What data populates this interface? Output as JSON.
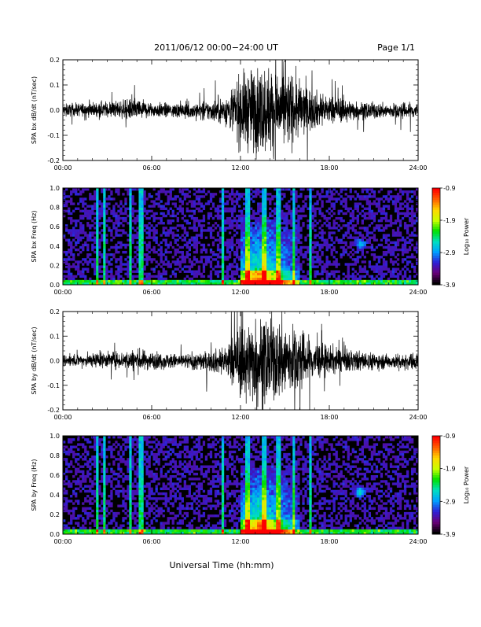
{
  "header": {
    "date_range": "2011/06/12  00:00−24:00 UT",
    "page": "Page 1/1"
  },
  "footer": {
    "xlabel": "Universal Time (hh:mm)"
  },
  "colorbar": {
    "label": "Log₁₀ Power",
    "ticks": [
      "-0.9",
      "-1.9",
      "-2.9",
      "-3.9"
    ],
    "range": [
      -3.9,
      -0.9
    ],
    "colormap": [
      "#000000",
      "#6a0078",
      "#2e20d8",
      "#00a0ff",
      "#00e0c0",
      "#00e000",
      "#c8ff00",
      "#ffd800",
      "#ff6000",
      "#ff0000"
    ]
  },
  "chart_data": [
    {
      "type": "line",
      "ylabel": "SPA bx dB/dt (nT/sec)",
      "x_range_hours": [
        0,
        24
      ],
      "xticks": [
        "00:00",
        "06:00",
        "12:00",
        "18:00",
        "24:00"
      ],
      "ylim": [
        -0.2,
        0.2
      ],
      "yticks": [
        "0.2",
        "0.1",
        "0.0",
        "-0.1",
        "-0.2"
      ],
      "line_color": "#000000",
      "envelope": {
        "hours": [
          0,
          2,
          4,
          5,
          6,
          8,
          10,
          11,
          12,
          13,
          14,
          15,
          16,
          17,
          18,
          19,
          20,
          22,
          24
        ],
        "amplitude": [
          0.04,
          0.05,
          0.06,
          0.08,
          0.05,
          0.05,
          0.07,
          0.1,
          0.25,
          0.3,
          0.3,
          0.28,
          0.2,
          0.13,
          0.1,
          0.08,
          0.06,
          0.05,
          0.06
        ]
      }
    },
    {
      "type": "heatmap",
      "ylabel": "SPA bx Freq (Hz)",
      "x_range_hours": [
        0,
        24
      ],
      "xticks": [
        "00:00",
        "06:00",
        "12:00",
        "18:00",
        "24:00"
      ],
      "ylim": [
        0,
        1.0
      ],
      "yticks": [
        "1.0",
        "0.8",
        "0.6",
        "0.4",
        "0.2",
        "0.0"
      ],
      "z_range_log10": [
        -3.9,
        -0.9
      ],
      "notes_features": {
        "low_freq_band_hz": 0.05,
        "intense_window_hours": [
          12,
          16
        ],
        "peak_hour": 13.3,
        "blob": {
          "hour": 20.1,
          "freq_hz": 0.42
        },
        "vertical_streaks_hours": [
          2.3,
          2.8,
          4.6,
          5.3,
          10.8,
          12.5,
          13.6,
          14.6,
          15.6,
          16.7
        ]
      }
    },
    {
      "type": "line",
      "ylabel": "SPA by dB/dt (nT/sec)",
      "x_range_hours": [
        0,
        24
      ],
      "xticks": [
        "00:00",
        "06:00",
        "12:00",
        "18:00",
        "24:00"
      ],
      "ylim": [
        -0.2,
        0.2
      ],
      "yticks": [
        "0.2",
        "0.1",
        "0.0",
        "-0.1",
        "-0.2"
      ],
      "line_color": "#000000",
      "envelope": {
        "hours": [
          0,
          2,
          4,
          5,
          6,
          8,
          10,
          11,
          12,
          13,
          14,
          15,
          16,
          17,
          18,
          19,
          20,
          22,
          24
        ],
        "amplitude": [
          0.04,
          0.05,
          0.06,
          0.08,
          0.06,
          0.05,
          0.07,
          0.11,
          0.26,
          0.3,
          0.3,
          0.28,
          0.21,
          0.14,
          0.1,
          0.08,
          0.07,
          0.05,
          0.06
        ]
      }
    },
    {
      "type": "heatmap",
      "ylabel": "SPA by Freq (Hz)",
      "x_range_hours": [
        0,
        24
      ],
      "xticks": [
        "00:00",
        "06:00",
        "12:00",
        "18:00",
        "24:00"
      ],
      "ylim": [
        0,
        1.0
      ],
      "yticks": [
        "1.0",
        "0.8",
        "0.6",
        "0.4",
        "0.2",
        "0.0"
      ],
      "z_range_log10": [
        -3.9,
        -0.9
      ],
      "notes_features": {
        "low_freq_band_hz": 0.06,
        "intense_window_hours": [
          12,
          16
        ],
        "peak_hour": 13.3,
        "blob": {
          "hour": 20.1,
          "freq_hz": 0.43
        },
        "vertical_streaks_hours": [
          2.3,
          2.8,
          4.6,
          5.3,
          10.8,
          12.5,
          13.6,
          14.6,
          15.6,
          16.7
        ]
      }
    }
  ]
}
